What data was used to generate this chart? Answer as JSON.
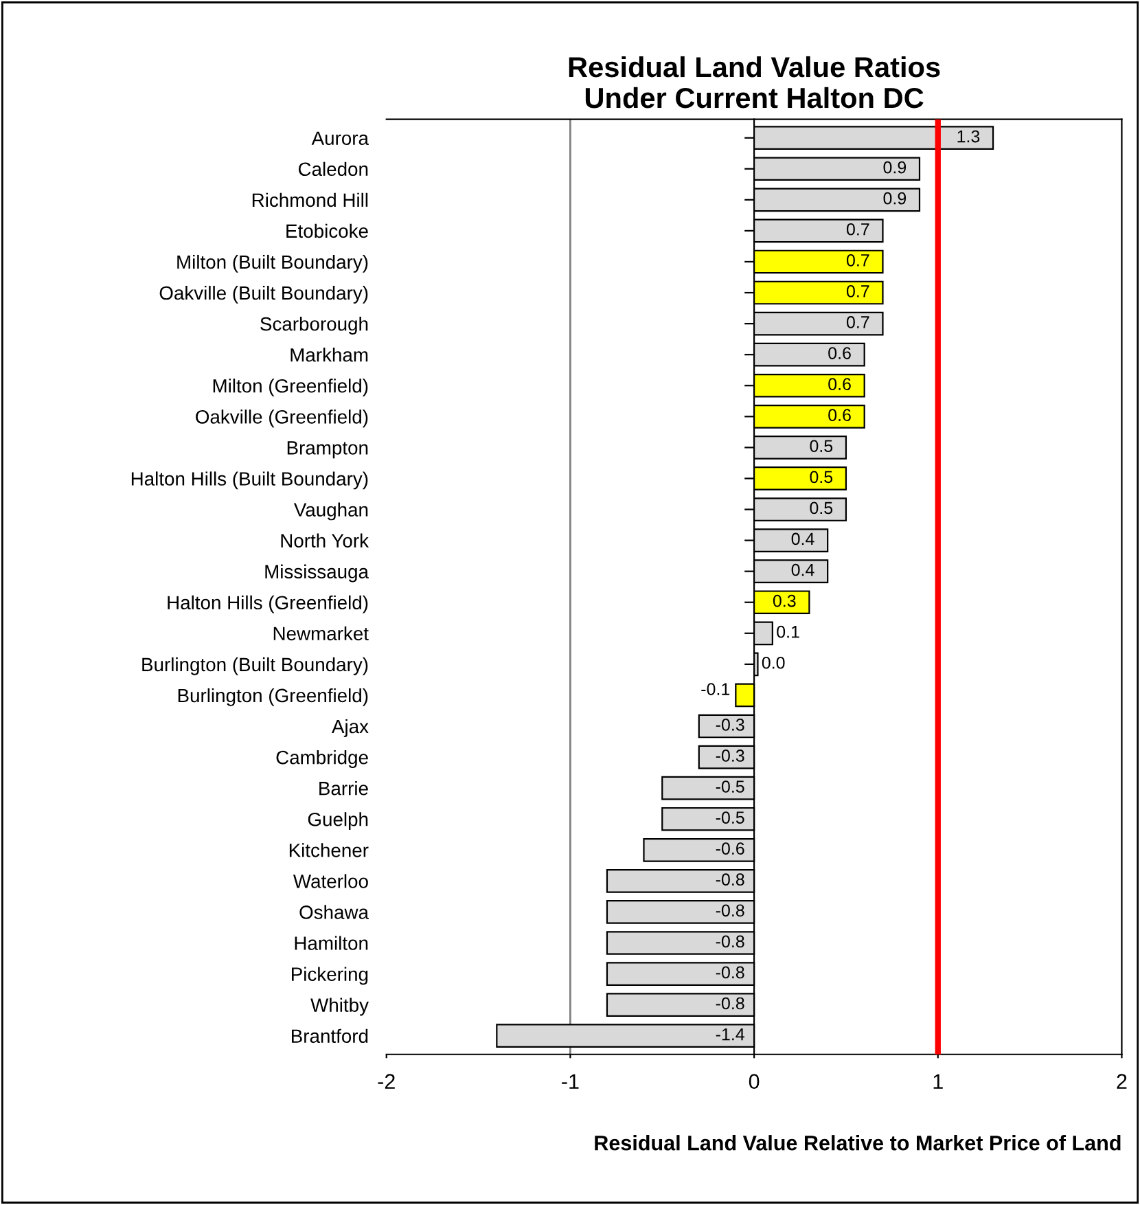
{
  "chart_data": {
    "type": "bar",
    "orientation": "horizontal",
    "title": "Residual Land Value Ratios\nUnder Current Halton DC",
    "xlabel": "Residual Land Value Relative to Market Price of Land",
    "categories": [
      "Aurora",
      "Caledon",
      "Richmond Hill",
      "Etobicoke",
      "Milton (Built Boundary)",
      "Oakville (Built Boundary)",
      "Scarborough",
      "Markham",
      "Milton (Greenfield)",
      "Oakville (Greenfield)",
      "Brampton",
      "Halton Hills (Built Boundary)",
      "Vaughan",
      "North York",
      "Mississauga",
      "Halton Hills (Greenfield)",
      "Newmarket",
      "Burlington (Built Boundary)",
      "Burlington (Greenfield)",
      "Ajax",
      "Cambridge",
      "Barrie",
      "Guelph",
      "Kitchener",
      "Waterloo",
      "Oshawa",
      "Hamilton",
      "Pickering",
      "Whitby",
      "Brantford"
    ],
    "values": [
      1.3,
      0.9,
      0.9,
      0.7,
      0.7,
      0.7,
      0.7,
      0.6,
      0.6,
      0.6,
      0.5,
      0.5,
      0.5,
      0.4,
      0.4,
      0.3,
      0.1,
      0.02,
      -0.1,
      -0.3,
      -0.3,
      -0.5,
      -0.5,
      -0.6,
      -0.8,
      -0.8,
      -0.8,
      -0.8,
      -0.8,
      -1.4
    ],
    "colors": [
      "#d9d9d9",
      "#d9d9d9",
      "#d9d9d9",
      "#d9d9d9",
      "#ffff00",
      "#ffff00",
      "#d9d9d9",
      "#d9d9d9",
      "#ffff00",
      "#ffff00",
      "#d9d9d9",
      "#ffff00",
      "#d9d9d9",
      "#d9d9d9",
      "#d9d9d9",
      "#ffff00",
      "#d9d9d9",
      "#d9d9d9",
      "#ffff00",
      "#d9d9d9",
      "#d9d9d9",
      "#d9d9d9",
      "#d9d9d9",
      "#d9d9d9",
      "#d9d9d9",
      "#d9d9d9",
      "#d9d9d9",
      "#d9d9d9",
      "#d9d9d9",
      "#d9d9d9"
    ],
    "value_labels": [
      "1.3",
      "0.9",
      "0.9",
      "0.7",
      "0.7",
      "0.7",
      "0.7",
      "0.6",
      "0.6",
      "0.6",
      "0.5",
      "0.5",
      "0.5",
      "0.4",
      "0.4",
      "0.3",
      "0.1",
      "0.0",
      "-0.1",
      "-0.3",
      "-0.3",
      "-0.5",
      "-0.5",
      "-0.6",
      "-0.8",
      "-0.8",
      "-0.8",
      "-0.8",
      "-0.8",
      "-1.4"
    ],
    "xlim": [
      -2,
      2
    ],
    "xticks": [
      -2,
      -1,
      0,
      1,
      2
    ],
    "ref_lines": [
      {
        "axis": "x",
        "value": -1,
        "color": "#808080"
      },
      {
        "axis": "x",
        "value": 1,
        "color": "#ff0000"
      }
    ],
    "grid": false,
    "legend": false
  }
}
